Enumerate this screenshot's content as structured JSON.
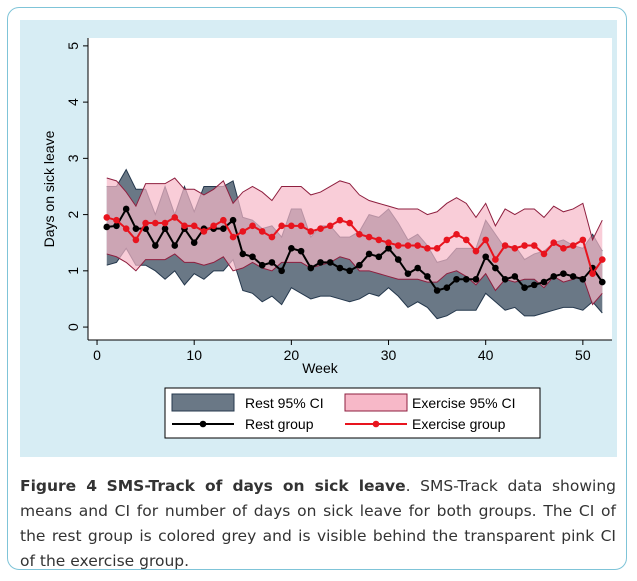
{
  "chart_data": {
    "type": "line",
    "y_label": "Days on sick leave",
    "x_label": "Week",
    "xlim": [
      -0.93,
      53
    ],
    "xticks": [
      0,
      10,
      20,
      30,
      40,
      50
    ],
    "ylim": [
      -0.23,
      5.14
    ],
    "yticks": [
      0,
      1,
      2,
      3,
      4,
      5
    ],
    "x": [
      1,
      2,
      3,
      4,
      5,
      6,
      7,
      8,
      9,
      10,
      11,
      12,
      13,
      14,
      15,
      16,
      17,
      18,
      19,
      20,
      21,
      22,
      23,
      24,
      25,
      26,
      27,
      28,
      29,
      30,
      31,
      32,
      33,
      34,
      35,
      36,
      37,
      38,
      39,
      40,
      41,
      42,
      43,
      44,
      45,
      46,
      47,
      48,
      49,
      50,
      51,
      52
    ],
    "bands": [
      {
        "name": "Rest 95% CI",
        "color": "#6a7886",
        "edge": "#25384d",
        "lower": [
          1.1,
          1.15,
          1.4,
          1.1,
          1.1,
          1.0,
          0.85,
          1.0,
          0.75,
          0.95,
          0.85,
          1.0,
          1.0,
          1.2,
          0.65,
          0.6,
          0.45,
          0.55,
          0.4,
          0.7,
          0.6,
          0.5,
          0.55,
          0.55,
          0.5,
          0.45,
          0.5,
          0.6,
          0.55,
          0.7,
          0.55,
          0.35,
          0.45,
          0.35,
          0.15,
          0.2,
          0.3,
          0.3,
          0.3,
          0.6,
          0.45,
          0.3,
          0.35,
          0.2,
          0.2,
          0.25,
          0.3,
          0.35,
          0.35,
          0.3,
          0.45,
          0.25
        ],
        "upper": [
          2.5,
          2.5,
          2.8,
          2.45,
          2.45,
          2.0,
          2.5,
          2.0,
          2.5,
          2.05,
          2.5,
          2.5,
          2.5,
          2.6,
          1.95,
          1.9,
          1.75,
          1.8,
          1.6,
          2.1,
          2.1,
          1.6,
          1.8,
          1.8,
          1.6,
          1.6,
          1.7,
          2.0,
          1.95,
          2.1,
          1.85,
          1.55,
          1.65,
          1.45,
          1.15,
          1.2,
          1.4,
          1.4,
          1.4,
          1.9,
          1.65,
          1.4,
          1.45,
          1.2,
          1.3,
          1.35,
          1.5,
          1.55,
          1.45,
          1.4,
          1.65,
          1.35
        ]
      },
      {
        "name": "Exercise 95% CI",
        "color": "#f7b8c8",
        "edge": "#8e1f3f",
        "lower": [
          1.3,
          1.25,
          1.15,
          1.0,
          1.2,
          1.2,
          1.2,
          1.3,
          1.15,
          1.15,
          1.1,
          1.15,
          1.25,
          1.0,
          1.05,
          1.15,
          1.05,
          1.0,
          1.15,
          1.15,
          1.15,
          1.05,
          1.1,
          1.15,
          1.25,
          1.2,
          1.0,
          1.0,
          0.95,
          0.9,
          0.85,
          0.85,
          0.85,
          0.8,
          0.8,
          0.95,
          1.0,
          0.9,
          0.75,
          0.95,
          0.65,
          0.85,
          0.8,
          0.85,
          0.85,
          0.7,
          0.9,
          0.8,
          0.85,
          0.9,
          0.4,
          0.6
        ],
        "upper": [
          2.65,
          2.6,
          2.4,
          2.15,
          2.55,
          2.55,
          2.55,
          2.65,
          2.45,
          2.45,
          2.35,
          2.45,
          2.6,
          2.2,
          2.4,
          2.5,
          2.4,
          2.25,
          2.5,
          2.5,
          2.5,
          2.35,
          2.4,
          2.5,
          2.6,
          2.55,
          2.35,
          2.25,
          2.2,
          2.15,
          2.1,
          2.1,
          2.1,
          2.0,
          2.05,
          2.2,
          2.3,
          2.2,
          1.95,
          2.2,
          1.8,
          2.1,
          2.0,
          2.1,
          2.1,
          1.95,
          2.15,
          2.05,
          2.1,
          2.2,
          1.55,
          1.9
        ]
      }
    ],
    "series": [
      {
        "name": "Rest group",
        "color": "#000000",
        "values": [
          1.78,
          1.8,
          2.1,
          1.75,
          1.75,
          1.45,
          1.75,
          1.45,
          1.75,
          1.5,
          1.75,
          1.75,
          1.75,
          1.9,
          1.3,
          1.25,
          1.1,
          1.15,
          1.0,
          1.4,
          1.35,
          1.05,
          1.15,
          1.15,
          1.05,
          1.0,
          1.1,
          1.3,
          1.25,
          1.4,
          1.2,
          0.95,
          1.05,
          0.9,
          0.65,
          0.7,
          0.85,
          0.85,
          0.85,
          1.25,
          1.05,
          0.85,
          0.9,
          0.7,
          0.75,
          0.8,
          0.9,
          0.95,
          0.9,
          0.85,
          1.05,
          0.8
        ]
      },
      {
        "name": "Exercise group",
        "color": "#e8141e",
        "values": [
          1.95,
          1.9,
          1.75,
          1.55,
          1.85,
          1.85,
          1.85,
          1.95,
          1.8,
          1.8,
          1.7,
          1.8,
          1.9,
          1.6,
          1.7,
          1.8,
          1.7,
          1.6,
          1.8,
          1.8,
          1.8,
          1.7,
          1.75,
          1.8,
          1.9,
          1.85,
          1.65,
          1.6,
          1.55,
          1.5,
          1.45,
          1.45,
          1.45,
          1.4,
          1.4,
          1.55,
          1.65,
          1.55,
          1.35,
          1.55,
          1.2,
          1.45,
          1.4,
          1.45,
          1.45,
          1.3,
          1.5,
          1.4,
          1.45,
          1.55,
          0.95,
          1.2
        ]
      }
    ]
  },
  "caption": {
    "label": "Figure 4",
    "title": "SMS-Track of days on sick leave",
    "text": ". SMS-Track data showing means and CI for number of days on sick leave for both groups. The CI of the rest group is colored grey and is visible behind the transparent pink CI of the exercise group."
  }
}
